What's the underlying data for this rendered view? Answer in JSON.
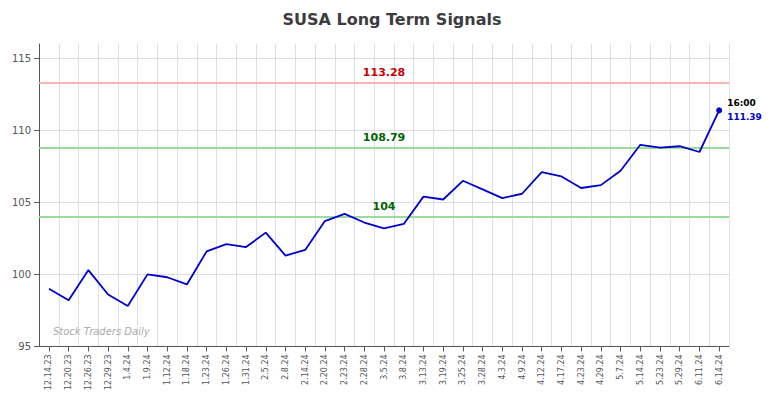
{
  "chart_data": {
    "type": "line",
    "title": "SUSA Long Term Signals",
    "categories": [
      "12.14.23",
      "12.20.23",
      "12.26.23",
      "12.29.23",
      "1.4.24",
      "1.9.24",
      "1.12.24",
      "1.18.24",
      "1.23.24",
      "1.26.24",
      "1.31.24",
      "2.5.24",
      "2.8.24",
      "2.14.24",
      "2.20.24",
      "2.23.24",
      "2.28.24",
      "3.5.24",
      "3.8.24",
      "3.13.24",
      "3.19.24",
      "3.25.24",
      "3.28.24",
      "4.3.24",
      "4.9.24",
      "4.12.24",
      "4.17.24",
      "4.23.24",
      "4.29.24",
      "5.7.24",
      "5.14.24",
      "5.23.24",
      "5.29.24",
      "6.11.24",
      "6.14.24"
    ],
    "values": [
      99.0,
      98.2,
      100.3,
      98.6,
      97.8,
      100.0,
      99.8,
      99.3,
      101.6,
      102.1,
      101.9,
      102.9,
      101.3,
      101.7,
      103.7,
      104.2,
      103.6,
      103.2,
      103.5,
      105.4,
      105.2,
      106.5,
      105.9,
      105.3,
      105.6,
      107.1,
      106.8,
      106.0,
      106.2,
      107.2,
      109.0,
      108.8,
      108.9,
      108.5,
      111.39
    ],
    "color": "#0000cc",
    "hlines": [
      {
        "value": 113.28,
        "label": "113.28",
        "color": "#ffb3b3",
        "label_color": "#cc0000"
      },
      {
        "value": 108.79,
        "label": "108.79",
        "color": "#99dd99",
        "label_color": "#006600"
      },
      {
        "value": 104.0,
        "label": "104",
        "color": "#99dd99",
        "label_color": "#006600"
      }
    ],
    "last_label": "16:00",
    "last_label_color": "#000000",
    "last_value": 111.39,
    "watermark": "Stock Traders Daily",
    "watermark_color": "#aaaaaa",
    "ylim": [
      95,
      116
    ],
    "yticks": [
      95,
      100,
      105,
      110,
      115
    ],
    "grid": true
  }
}
